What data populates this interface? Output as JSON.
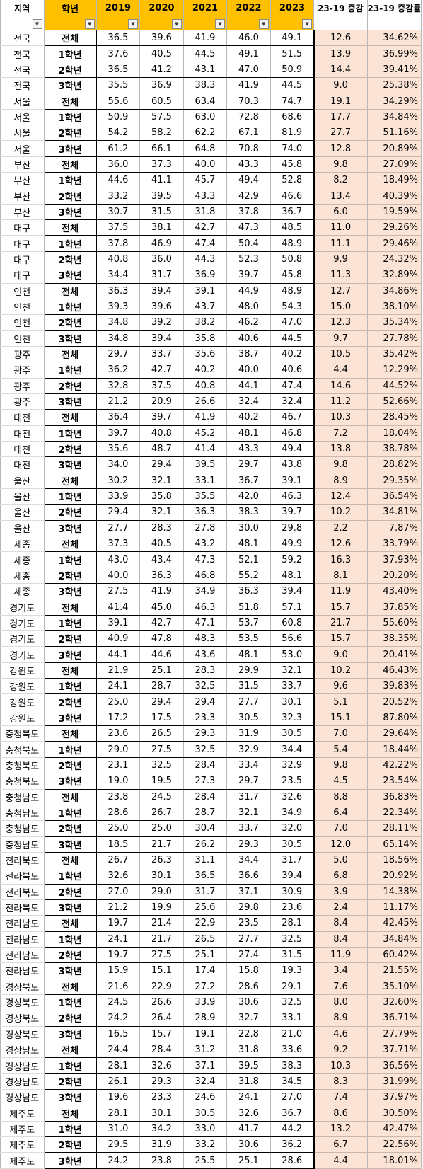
{
  "header": {
    "region": "지역",
    "grade": "학년",
    "years": [
      "2019",
      "2020",
      "2021",
      "2022",
      "2023"
    ],
    "increase": "23-19 증감",
    "rate": "23-19 증감률"
  },
  "filter_icon": "dropdown-arrow-icon",
  "colors": {
    "header_yellow": "#ffc000",
    "result_fill": "#fbe3d6"
  },
  "rows": [
    {
      "region": "전국",
      "grade": "전체",
      "v": [
        "36.5",
        "39.6",
        "41.9",
        "46.0",
        "49.1"
      ],
      "inc": "12.6",
      "rate": "34.62%"
    },
    {
      "region": "전국",
      "grade": "1학년",
      "v": [
        "37.6",
        "40.5",
        "44.5",
        "49.1",
        "51.5"
      ],
      "inc": "13.9",
      "rate": "36.99%"
    },
    {
      "region": "전국",
      "grade": "2학년",
      "v": [
        "36.5",
        "41.2",
        "43.1",
        "47.0",
        "50.9"
      ],
      "inc": "14.4",
      "rate": "39.41%"
    },
    {
      "region": "전국",
      "grade": "3학년",
      "v": [
        "35.5",
        "36.9",
        "38.3",
        "41.9",
        "44.5"
      ],
      "inc": "9.0",
      "rate": "25.38%"
    },
    {
      "region": "서울",
      "grade": "전체",
      "v": [
        "55.6",
        "60.5",
        "63.4",
        "70.3",
        "74.7"
      ],
      "inc": "19.1",
      "rate": "34.29%"
    },
    {
      "region": "서울",
      "grade": "1학년",
      "v": [
        "50.9",
        "57.5",
        "63.0",
        "72.8",
        "68.6"
      ],
      "inc": "17.7",
      "rate": "34.84%"
    },
    {
      "region": "서울",
      "grade": "2학년",
      "v": [
        "54.2",
        "58.2",
        "62.2",
        "67.1",
        "81.9"
      ],
      "inc": "27.7",
      "rate": "51.16%"
    },
    {
      "region": "서울",
      "grade": "3학년",
      "v": [
        "61.2",
        "66.1",
        "64.8",
        "70.8",
        "74.0"
      ],
      "inc": "12.8",
      "rate": "20.89%"
    },
    {
      "region": "부산",
      "grade": "전체",
      "v": [
        "36.0",
        "37.3",
        "40.0",
        "43.3",
        "45.8"
      ],
      "inc": "9.8",
      "rate": "27.09%"
    },
    {
      "region": "부산",
      "grade": "1학년",
      "v": [
        "44.6",
        "41.1",
        "45.7",
        "49.4",
        "52.8"
      ],
      "inc": "8.2",
      "rate": "18.49%"
    },
    {
      "region": "부산",
      "grade": "2학년",
      "v": [
        "33.2",
        "39.5",
        "43.3",
        "42.9",
        "46.6"
      ],
      "inc": "13.4",
      "rate": "40.39%"
    },
    {
      "region": "부산",
      "grade": "3학년",
      "v": [
        "30.7",
        "31.5",
        "31.8",
        "37.8",
        "36.7"
      ],
      "inc": "6.0",
      "rate": "19.59%"
    },
    {
      "region": "대구",
      "grade": "전체",
      "v": [
        "37.5",
        "38.1",
        "42.7",
        "47.3",
        "48.5"
      ],
      "inc": "11.0",
      "rate": "29.26%"
    },
    {
      "region": "대구",
      "grade": "1학년",
      "v": [
        "37.8",
        "46.9",
        "47.4",
        "50.4",
        "48.9"
      ],
      "inc": "11.1",
      "rate": "29.46%"
    },
    {
      "region": "대구",
      "grade": "2학년",
      "v": [
        "40.8",
        "36.0",
        "44.3",
        "52.3",
        "50.8"
      ],
      "inc": "9.9",
      "rate": "24.32%"
    },
    {
      "region": "대구",
      "grade": "3학년",
      "v": [
        "34.4",
        "31.7",
        "36.9",
        "39.7",
        "45.8"
      ],
      "inc": "11.3",
      "rate": "32.89%"
    },
    {
      "region": "인천",
      "grade": "전체",
      "v": [
        "36.3",
        "39.4",
        "39.1",
        "44.9",
        "48.9"
      ],
      "inc": "12.7",
      "rate": "34.86%"
    },
    {
      "region": "인천",
      "grade": "1학년",
      "v": [
        "39.3",
        "39.6",
        "43.7",
        "48.0",
        "54.3"
      ],
      "inc": "15.0",
      "rate": "38.10%"
    },
    {
      "region": "인천",
      "grade": "2학년",
      "v": [
        "34.8",
        "39.2",
        "38.2",
        "46.2",
        "47.0"
      ],
      "inc": "12.3",
      "rate": "35.34%"
    },
    {
      "region": "인천",
      "grade": "3학년",
      "v": [
        "34.8",
        "39.4",
        "35.8",
        "40.6",
        "44.5"
      ],
      "inc": "9.7",
      "rate": "27.78%"
    },
    {
      "region": "광주",
      "grade": "전체",
      "v": [
        "29.7",
        "33.7",
        "35.6",
        "38.7",
        "40.2"
      ],
      "inc": "10.5",
      "rate": "35.42%"
    },
    {
      "region": "광주",
      "grade": "1학년",
      "v": [
        "36.2",
        "42.7",
        "40.2",
        "40.0",
        "40.6"
      ],
      "inc": "4.4",
      "rate": "12.29%"
    },
    {
      "region": "광주",
      "grade": "2학년",
      "v": [
        "32.8",
        "37.5",
        "40.8",
        "44.1",
        "47.4"
      ],
      "inc": "14.6",
      "rate": "44.52%"
    },
    {
      "region": "광주",
      "grade": "3학년",
      "v": [
        "21.2",
        "20.9",
        "26.6",
        "32.4",
        "32.4"
      ],
      "inc": "11.2",
      "rate": "52.66%"
    },
    {
      "region": "대전",
      "grade": "전체",
      "v": [
        "36.4",
        "39.7",
        "41.9",
        "40.2",
        "46.7"
      ],
      "inc": "10.3",
      "rate": "28.45%"
    },
    {
      "region": "대전",
      "grade": "1학년",
      "v": [
        "39.7",
        "40.8",
        "45.2",
        "48.1",
        "46.8"
      ],
      "inc": "7.2",
      "rate": "18.04%"
    },
    {
      "region": "대전",
      "grade": "2학년",
      "v": [
        "35.6",
        "48.7",
        "41.4",
        "43.3",
        "49.4"
      ],
      "inc": "13.8",
      "rate": "38.78%"
    },
    {
      "region": "대전",
      "grade": "3학년",
      "v": [
        "34.0",
        "29.4",
        "39.5",
        "29.7",
        "43.8"
      ],
      "inc": "9.8",
      "rate": "28.82%"
    },
    {
      "region": "울산",
      "grade": "전체",
      "v": [
        "30.2",
        "32.1",
        "33.1",
        "36.7",
        "39.1"
      ],
      "inc": "8.9",
      "rate": "29.35%"
    },
    {
      "region": "울산",
      "grade": "1학년",
      "v": [
        "33.9",
        "35.8",
        "35.5",
        "42.0",
        "46.3"
      ],
      "inc": "12.4",
      "rate": "36.54%"
    },
    {
      "region": "울산",
      "grade": "2학년",
      "v": [
        "29.4",
        "32.1",
        "36.3",
        "38.3",
        "39.7"
      ],
      "inc": "10.2",
      "rate": "34.81%"
    },
    {
      "region": "울산",
      "grade": "3학년",
      "v": [
        "27.7",
        "28.3",
        "27.8",
        "30.0",
        "29.8"
      ],
      "inc": "2.2",
      "rate": "7.87%"
    },
    {
      "region": "세종",
      "grade": "전체",
      "v": [
        "37.3",
        "40.5",
        "43.2",
        "48.1",
        "49.9"
      ],
      "inc": "12.6",
      "rate": "33.79%"
    },
    {
      "region": "세종",
      "grade": "1학년",
      "v": [
        "43.0",
        "43.4",
        "47.3",
        "52.1",
        "59.2"
      ],
      "inc": "16.3",
      "rate": "37.93%"
    },
    {
      "region": "세종",
      "grade": "2학년",
      "v": [
        "40.0",
        "36.3",
        "46.8",
        "55.2",
        "48.1"
      ],
      "inc": "8.1",
      "rate": "20.20%"
    },
    {
      "region": "세종",
      "grade": "3학년",
      "v": [
        "27.5",
        "41.9",
        "34.9",
        "36.3",
        "39.4"
      ],
      "inc": "11.9",
      "rate": "43.40%"
    },
    {
      "region": "경기도",
      "grade": "전체",
      "v": [
        "41.4",
        "45.0",
        "46.3",
        "51.8",
        "57.1"
      ],
      "inc": "15.7",
      "rate": "37.85%"
    },
    {
      "region": "경기도",
      "grade": "1학년",
      "v": [
        "39.1",
        "42.7",
        "47.1",
        "53.7",
        "60.8"
      ],
      "inc": "21.7",
      "rate": "55.60%"
    },
    {
      "region": "경기도",
      "grade": "2학년",
      "v": [
        "40.9",
        "47.8",
        "48.3",
        "53.5",
        "56.6"
      ],
      "inc": "15.7",
      "rate": "38.35%"
    },
    {
      "region": "경기도",
      "grade": "3학년",
      "v": [
        "44.1",
        "44.6",
        "43.6",
        "48.1",
        "53.0"
      ],
      "inc": "9.0",
      "rate": "20.41%"
    },
    {
      "region": "강원도",
      "grade": "전체",
      "v": [
        "21.9",
        "25.1",
        "28.3",
        "29.9",
        "32.1"
      ],
      "inc": "10.2",
      "rate": "46.43%"
    },
    {
      "region": "강원도",
      "grade": "1학년",
      "v": [
        "24.1",
        "28.7",
        "32.5",
        "31.5",
        "33.7"
      ],
      "inc": "9.6",
      "rate": "39.83%"
    },
    {
      "region": "강원도",
      "grade": "2학년",
      "v": [
        "25.0",
        "29.4",
        "29.4",
        "27.7",
        "30.1"
      ],
      "inc": "5.1",
      "rate": "20.52%"
    },
    {
      "region": "강원도",
      "grade": "3학년",
      "v": [
        "17.2",
        "17.5",
        "23.3",
        "30.5",
        "32.3"
      ],
      "inc": "15.1",
      "rate": "87.80%"
    },
    {
      "region": "충청북도",
      "grade": "전체",
      "v": [
        "23.6",
        "26.5",
        "29.3",
        "31.9",
        "30.5"
      ],
      "inc": "7.0",
      "rate": "29.64%"
    },
    {
      "region": "충청북도",
      "grade": "1학년",
      "v": [
        "29.0",
        "27.5",
        "32.5",
        "32.9",
        "34.4"
      ],
      "inc": "5.4",
      "rate": "18.44%"
    },
    {
      "region": "충청북도",
      "grade": "2학년",
      "v": [
        "23.1",
        "32.5",
        "28.4",
        "33.4",
        "32.9"
      ],
      "inc": "9.8",
      "rate": "42.22%"
    },
    {
      "region": "충청북도",
      "grade": "3학년",
      "v": [
        "19.0",
        "19.5",
        "27.3",
        "29.7",
        "23.5"
      ],
      "inc": "4.5",
      "rate": "23.54%"
    },
    {
      "region": "충청남도",
      "grade": "전체",
      "v": [
        "23.8",
        "24.5",
        "28.4",
        "31.7",
        "32.6"
      ],
      "inc": "8.8",
      "rate": "36.83%"
    },
    {
      "region": "충청남도",
      "grade": "1학년",
      "v": [
        "28.6",
        "26.7",
        "28.7",
        "32.1",
        "34.9"
      ],
      "inc": "6.4",
      "rate": "22.34%"
    },
    {
      "region": "충청남도",
      "grade": "2학년",
      "v": [
        "25.0",
        "25.0",
        "30.4",
        "33.7",
        "32.0"
      ],
      "inc": "7.0",
      "rate": "28.11%"
    },
    {
      "region": "충청남도",
      "grade": "3학년",
      "v": [
        "18.5",
        "21.7",
        "26.2",
        "29.3",
        "30.5"
      ],
      "inc": "12.0",
      "rate": "65.14%"
    },
    {
      "region": "전라북도",
      "grade": "전체",
      "v": [
        "26.7",
        "26.3",
        "31.1",
        "34.4",
        "31.7"
      ],
      "inc": "5.0",
      "rate": "18.56%"
    },
    {
      "region": "전라북도",
      "grade": "1학년",
      "v": [
        "32.6",
        "30.1",
        "36.5",
        "36.6",
        "39.4"
      ],
      "inc": "6.8",
      "rate": "20.92%"
    },
    {
      "region": "전라북도",
      "grade": "2학년",
      "v": [
        "27.0",
        "29.0",
        "31.7",
        "37.1",
        "30.9"
      ],
      "inc": "3.9",
      "rate": "14.38%"
    },
    {
      "region": "전라북도",
      "grade": "3학년",
      "v": [
        "21.2",
        "19.9",
        "25.6",
        "29.8",
        "23.6"
      ],
      "inc": "2.4",
      "rate": "11.17%"
    },
    {
      "region": "전라남도",
      "grade": "전체",
      "v": [
        "19.7",
        "21.4",
        "22.9",
        "23.5",
        "28.1"
      ],
      "inc": "8.4",
      "rate": "42.45%"
    },
    {
      "region": "전라남도",
      "grade": "1학년",
      "v": [
        "24.1",
        "21.7",
        "26.5",
        "27.7",
        "32.5"
      ],
      "inc": "8.4",
      "rate": "34.84%"
    },
    {
      "region": "전라남도",
      "grade": "2학년",
      "v": [
        "19.7",
        "27.5",
        "25.1",
        "27.4",
        "31.5"
      ],
      "inc": "11.9",
      "rate": "60.42%"
    },
    {
      "region": "전라남도",
      "grade": "3학년",
      "v": [
        "15.9",
        "15.1",
        "17.4",
        "15.8",
        "19.3"
      ],
      "inc": "3.4",
      "rate": "21.55%"
    },
    {
      "region": "경상북도",
      "grade": "전체",
      "v": [
        "21.6",
        "22.9",
        "27.2",
        "28.6",
        "29.1"
      ],
      "inc": "7.6",
      "rate": "35.10%"
    },
    {
      "region": "경상북도",
      "grade": "1학년",
      "v": [
        "24.5",
        "26.6",
        "33.9",
        "30.6",
        "32.5"
      ],
      "inc": "8.0",
      "rate": "32.60%"
    },
    {
      "region": "경상북도",
      "grade": "2학년",
      "v": [
        "24.2",
        "26.4",
        "28.9",
        "32.7",
        "33.1"
      ],
      "inc": "8.9",
      "rate": "36.71%"
    },
    {
      "region": "경상북도",
      "grade": "3학년",
      "v": [
        "16.5",
        "15.7",
        "19.1",
        "22.8",
        "21.0"
      ],
      "inc": "4.6",
      "rate": "27.79%"
    },
    {
      "region": "경상남도",
      "grade": "전체",
      "v": [
        "24.4",
        "28.4",
        "31.2",
        "31.8",
        "33.6"
      ],
      "inc": "9.2",
      "rate": "37.71%"
    },
    {
      "region": "경상남도",
      "grade": "1학년",
      "v": [
        "28.1",
        "32.6",
        "37.1",
        "39.5",
        "38.3"
      ],
      "inc": "10.3",
      "rate": "36.56%"
    },
    {
      "region": "경상남도",
      "grade": "2학년",
      "v": [
        "26.1",
        "29.3",
        "32.4",
        "31.8",
        "34.5"
      ],
      "inc": "8.3",
      "rate": "31.99%"
    },
    {
      "region": "경상남도",
      "grade": "3학년",
      "v": [
        "19.6",
        "23.3",
        "24.6",
        "24.1",
        "27.0"
      ],
      "inc": "7.4",
      "rate": "37.97%"
    },
    {
      "region": "제주도",
      "grade": "전체",
      "v": [
        "28.1",
        "30.1",
        "30.5",
        "32.6",
        "36.7"
      ],
      "inc": "8.6",
      "rate": "30.50%"
    },
    {
      "region": "제주도",
      "grade": "1학년",
      "v": [
        "31.0",
        "34.2",
        "33.0",
        "41.7",
        "44.2"
      ],
      "inc": "13.2",
      "rate": "42.47%"
    },
    {
      "region": "제주도",
      "grade": "2학년",
      "v": [
        "29.5",
        "31.9",
        "33.2",
        "30.6",
        "36.2"
      ],
      "inc": "6.7",
      "rate": "22.56%"
    },
    {
      "region": "제주도",
      "grade": "3학년",
      "v": [
        "24.2",
        "23.8",
        "25.5",
        "25.1",
        "28.6"
      ],
      "inc": "4.4",
      "rate": "18.01%"
    }
  ]
}
